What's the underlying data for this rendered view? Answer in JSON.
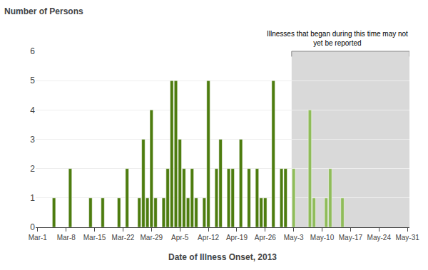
{
  "chart_data": {
    "type": "bar",
    "title": "Number of Persons",
    "xlabel": "Date of Illness Onset, 2013",
    "x": [
      4,
      8,
      13,
      16,
      20,
      22,
      25,
      26,
      27,
      28,
      29,
      31,
      32,
      33,
      34,
      35,
      36,
      37,
      38,
      39,
      41,
      42,
      44,
      45,
      47,
      48,
      50,
      52,
      54,
      55,
      56,
      58,
      60,
      61,
      63,
      67,
      68,
      71,
      72,
      75
    ],
    "values": [
      1,
      2,
      1,
      1,
      1,
      2,
      1,
      3,
      1,
      4,
      1,
      1,
      2,
      5,
      5,
      3,
      2,
      1,
      2,
      1,
      1,
      5,
      2,
      3,
      2,
      2,
      3,
      2,
      2,
      1,
      1,
      5,
      2,
      2,
      2,
      4,
      1,
      1,
      2,
      1
    ],
    "colors": [
      "#4d7c0f",
      "#4d7c0f",
      "#4d7c0f",
      "#4d7c0f",
      "#4d7c0f",
      "#4d7c0f",
      "#4d7c0f",
      "#4d7c0f",
      "#4d7c0f",
      "#4d7c0f",
      "#4d7c0f",
      "#4d7c0f",
      "#4d7c0f",
      "#4d7c0f",
      "#4d7c0f",
      "#4d7c0f",
      "#4d7c0f",
      "#4d7c0f",
      "#4d7c0f",
      "#4d7c0f",
      "#4d7c0f",
      "#4d7c0f",
      "#4d7c0f",
      "#4d7c0f",
      "#4d7c0f",
      "#4d7c0f",
      "#4d7c0f",
      "#4d7c0f",
      "#4d7c0f",
      "#4d7c0f",
      "#4d7c0f",
      "#4d7c0f",
      "#4d7c0f",
      "#4d7c0f",
      "#8fbc5a",
      "#8fbc5a",
      "#8fbc5a",
      "#8fbc5a",
      "#8fbc5a",
      "#8fbc5a"
    ],
    "xlim": [
      -0.5,
      91.5
    ],
    "xticks": [
      {
        "value": 0,
        "label": "Mar-1"
      },
      {
        "value": 7,
        "label": "Mar-8"
      },
      {
        "value": 14,
        "label": "Mar-15"
      },
      {
        "value": 21,
        "label": "Mar-22"
      },
      {
        "value": 28,
        "label": "Mar-29"
      },
      {
        "value": 35,
        "label": "Apr-5"
      },
      {
        "value": 42,
        "label": "Apr-12"
      },
      {
        "value": 49,
        "label": "Apr-19"
      },
      {
        "value": 56,
        "label": "Apr-26"
      },
      {
        "value": 63,
        "label": "May-3"
      },
      {
        "value": 70,
        "label": "May-10"
      },
      {
        "value": 77,
        "label": "May-17"
      },
      {
        "value": 84,
        "label": "May-24"
      },
      {
        "value": 91,
        "label": "May-31"
      }
    ],
    "ylim": [
      0,
      6
    ],
    "yticks": [
      0,
      1,
      2,
      3,
      4,
      5,
      6
    ],
    "grid": true,
    "annotations": [
      {
        "text": "Illnesses that began during this time may not\nyet be reported",
        "x": [
          62.5,
          91.5
        ],
        "color": "#d9d9d9"
      }
    ]
  }
}
